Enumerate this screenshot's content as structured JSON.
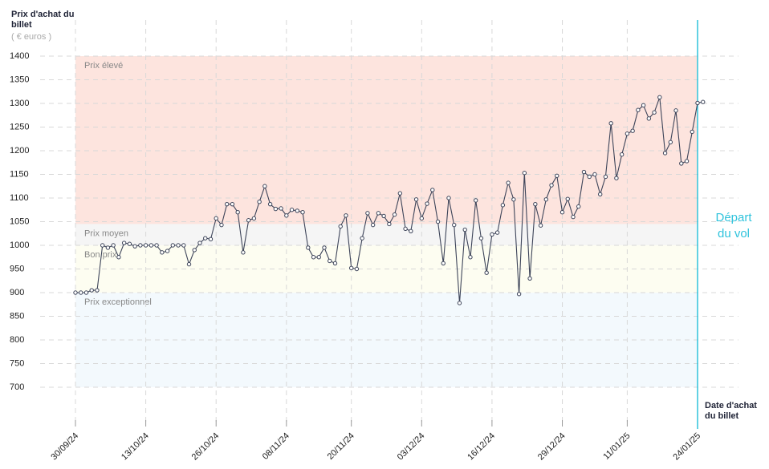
{
  "chart_data": {
    "type": "line",
    "y_label": "Prix d'achat du billet",
    "y_unit": "( € euros )",
    "x_label": "Date d'achat du billet",
    "annotation": "Départ du vol",
    "color": "#3d4459",
    "annotation_color": "#2fc3dc",
    "grid": true,
    "ylim": [
      700,
      1400
    ],
    "yticks": [
      700,
      750,
      800,
      850,
      900,
      950,
      1000,
      1050,
      1100,
      1150,
      1200,
      1250,
      1300,
      1350,
      1400
    ],
    "bands": [
      {
        "name": "Prix élevé",
        "from": 1045,
        "to": 1400,
        "color": "#fde4de"
      },
      {
        "name": "Prix moyen",
        "from": 1000,
        "to": 1045,
        "color": "#f5f5f5"
      },
      {
        "name": "Bon prix",
        "from": 900,
        "to": 1000,
        "color": "#fdfdf1"
      },
      {
        "name": "Prix exceptionnel",
        "from": 700,
        "to": 900,
        "color": "#f3f9fd"
      }
    ],
    "categories": [
      "30/09/24",
      null,
      null,
      null,
      null,
      null,
      null,
      null,
      null,
      null,
      null,
      null,
      null,
      "13/10/24",
      null,
      null,
      null,
      null,
      null,
      null,
      null,
      null,
      null,
      null,
      null,
      null,
      "26/10/24",
      null,
      null,
      null,
      null,
      null,
      null,
      null,
      null,
      null,
      null,
      null,
      null,
      "08/11/24",
      null,
      null,
      null,
      null,
      null,
      null,
      null,
      null,
      null,
      null,
      null,
      "20/11/24",
      null,
      null,
      null,
      null,
      null,
      null,
      null,
      null,
      null,
      null,
      null,
      null,
      "03/12/24",
      null,
      null,
      null,
      null,
      null,
      null,
      null,
      null,
      null,
      null,
      null,
      null,
      "16/12/24",
      null,
      null,
      null,
      null,
      null,
      null,
      null,
      null,
      null,
      null,
      null,
      null,
      "29/12/24",
      null,
      null,
      null,
      null,
      null,
      null,
      null,
      null,
      null,
      null,
      null,
      "11/01/25",
      null,
      null,
      null,
      null,
      null,
      null,
      null,
      null,
      null,
      null,
      null,
      null,
      "24/01/25",
      null
    ],
    "values": [
      900,
      900,
      900,
      905,
      905,
      1000,
      995,
      1000,
      975,
      1005,
      1003,
      998,
      1000,
      1000,
      1000,
      1000,
      985,
      988,
      1000,
      1000,
      1000,
      960,
      990,
      1005,
      1015,
      1013,
      1057,
      1043,
      1087,
      1087,
      1070,
      985,
      1053,
      1057,
      1092,
      1125,
      1087,
      1077,
      1078,
      1063,
      1075,
      1073,
      1070,
      995,
      975,
      975,
      995,
      967,
      962,
      1040,
      1063,
      952,
      950,
      1015,
      1068,
      1043,
      1068,
      1062,
      1045,
      1065,
      1110,
      1035,
      1030,
      1097,
      1057,
      1088,
      1117,
      1050,
      962,
      1100,
      1043,
      878,
      1033,
      975,
      1095,
      1015,
      942,
      1023,
      1027,
      1085,
      1132,
      1097,
      897,
      1153,
      930,
      1087,
      1042,
      1097,
      1127,
      1147,
      1070,
      1098,
      1060,
      1082,
      1155,
      1145,
      1150,
      1108,
      1145,
      1258,
      1142,
      1192,
      1236,
      1242,
      1286,
      1296,
      1268,
      1281,
      1313,
      1195,
      1218,
      1285,
      1173,
      1178,
      1240,
      1301,
      1303
    ]
  }
}
